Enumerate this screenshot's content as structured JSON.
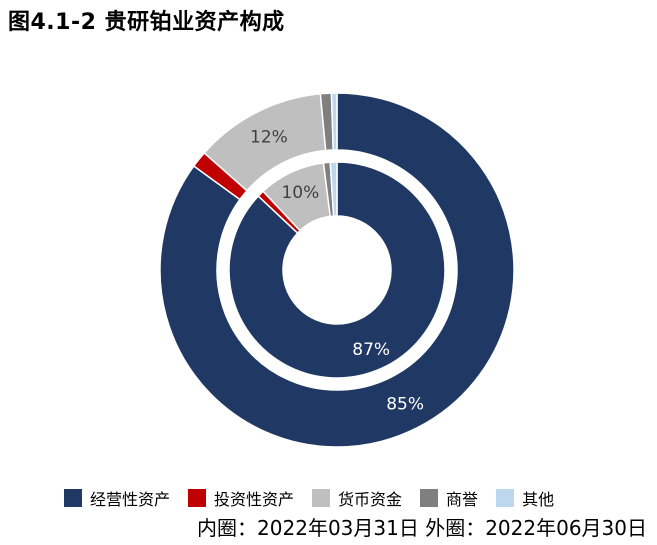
{
  "title": "图4.1-2 贵研铂业资产构成",
  "note": "内圈：2022年03月31日 外圈：2022年06月30日",
  "chart_data": {
    "type": "pie",
    "title": "图4.1-2 贵研铂业资产构成",
    "categories": [
      "经营性资产",
      "投资性资产",
      "货币资金",
      "商誉",
      "其他"
    ],
    "colors": [
      "#1f3864",
      "#c00000",
      "#bfbfbf",
      "#7f7f7f",
      "#bdd7ee"
    ],
    "series": [
      {
        "name": "内圈：2022年03月31日",
        "values": [
          87,
          1,
          10,
          1,
          1
        ],
        "labels": [
          "87%",
          "",
          "10%",
          "",
          ""
        ]
      },
      {
        "name": "外圈：2022年06月30日",
        "values": [
          85,
          1.5,
          12,
          1,
          0.5
        ],
        "labels": [
          "85%",
          "",
          "12%",
          "",
          ""
        ]
      }
    ],
    "legend_position": "bottom"
  }
}
